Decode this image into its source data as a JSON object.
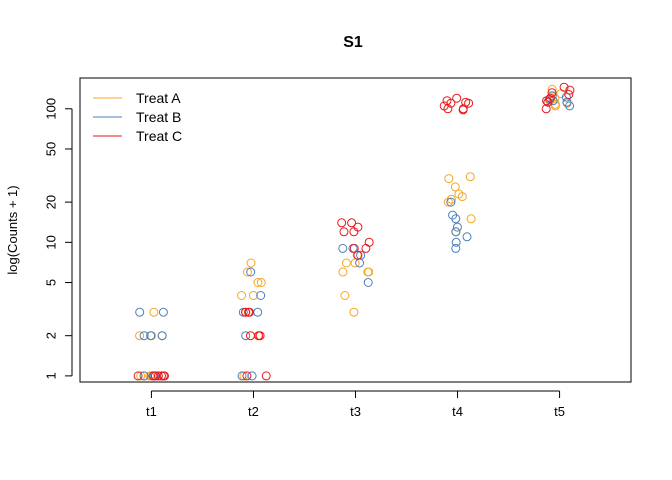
{
  "chart_data": {
    "type": "scatter",
    "title": "S1",
    "xlabel": "",
    "ylabel": "log(Counts + 1)",
    "y_scale": "log",
    "ylim": [
      0.9,
      170
    ],
    "yticks": [
      1,
      2,
      5,
      10,
      20,
      50,
      100
    ],
    "categories": [
      "t1",
      "t2",
      "t3",
      "t4",
      "t5"
    ],
    "grid": false,
    "legend_position": "top-left",
    "series": [
      {
        "name": "Treat A",
        "color": "#F5A623",
        "points": [
          {
            "x": "t1",
            "y": 1
          },
          {
            "x": "t1",
            "y": 1
          },
          {
            "x": "t1",
            "y": 1
          },
          {
            "x": "t1",
            "y": 1
          },
          {
            "x": "t1",
            "y": 1
          },
          {
            "x": "t1",
            "y": 2
          },
          {
            "x": "t1",
            "y": 2
          },
          {
            "x": "t1",
            "y": 2
          },
          {
            "x": "t1",
            "y": 3
          },
          {
            "x": "t2",
            "y": 7
          },
          {
            "x": "t2",
            "y": 6
          },
          {
            "x": "t2",
            "y": 5
          },
          {
            "x": "t2",
            "y": 5
          },
          {
            "x": "t2",
            "y": 4
          },
          {
            "x": "t2",
            "y": 4
          },
          {
            "x": "t2",
            "y": 3
          },
          {
            "x": "t2",
            "y": 2
          },
          {
            "x": "t2",
            "y": 1
          },
          {
            "x": "t3",
            "y": 8
          },
          {
            "x": "t3",
            "y": 7
          },
          {
            "x": "t3",
            "y": 7
          },
          {
            "x": "t3",
            "y": 6
          },
          {
            "x": "t3",
            "y": 6
          },
          {
            "x": "t3",
            "y": 6
          },
          {
            "x": "t3",
            "y": 4
          },
          {
            "x": "t3",
            "y": 3
          },
          {
            "x": "t4",
            "y": 31
          },
          {
            "x": "t4",
            "y": 30
          },
          {
            "x": "t4",
            "y": 26
          },
          {
            "x": "t4",
            "y": 23
          },
          {
            "x": "t4",
            "y": 22
          },
          {
            "x": "t4",
            "y": 21
          },
          {
            "x": "t4",
            "y": 20
          },
          {
            "x": "t4",
            "y": 15
          },
          {
            "x": "t4",
            "y": 12
          },
          {
            "x": "t5",
            "y": 140
          },
          {
            "x": "t5",
            "y": 130
          },
          {
            "x": "t5",
            "y": 120
          },
          {
            "x": "t5",
            "y": 115
          },
          {
            "x": "t5",
            "y": 110
          },
          {
            "x": "t5",
            "y": 108
          },
          {
            "x": "t5",
            "y": 105
          }
        ]
      },
      {
        "name": "Treat B",
        "color": "#4A7FBF",
        "points": [
          {
            "x": "t1",
            "y": 3
          },
          {
            "x": "t1",
            "y": 3
          },
          {
            "x": "t1",
            "y": 2
          },
          {
            "x": "t1",
            "y": 2
          },
          {
            "x": "t1",
            "y": 2
          },
          {
            "x": "t1",
            "y": 1
          },
          {
            "x": "t1",
            "y": 1
          },
          {
            "x": "t2",
            "y": 6
          },
          {
            "x": "t2",
            "y": 4
          },
          {
            "x": "t2",
            "y": 3
          },
          {
            "x": "t2",
            "y": 3
          },
          {
            "x": "t2",
            "y": 2
          },
          {
            "x": "t2",
            "y": 1
          },
          {
            "x": "t2",
            "y": 1
          },
          {
            "x": "t3",
            "y": 9
          },
          {
            "x": "t3",
            "y": 9
          },
          {
            "x": "t3",
            "y": 8
          },
          {
            "x": "t3",
            "y": 7
          },
          {
            "x": "t3",
            "y": 5
          },
          {
            "x": "t4",
            "y": 16
          },
          {
            "x": "t4",
            "y": 15
          },
          {
            "x": "t4",
            "y": 13
          },
          {
            "x": "t4",
            "y": 12
          },
          {
            "x": "t4",
            "y": 11
          },
          {
            "x": "t4",
            "y": 10
          },
          {
            "x": "t4",
            "y": 9
          },
          {
            "x": "t4",
            "y": 20
          },
          {
            "x": "t5",
            "y": 125
          },
          {
            "x": "t5",
            "y": 122
          },
          {
            "x": "t5",
            "y": 118
          },
          {
            "x": "t5",
            "y": 115
          },
          {
            "x": "t5",
            "y": 112
          },
          {
            "x": "t5",
            "y": 105
          }
        ]
      },
      {
        "name": "Treat C",
        "color": "#E8191F",
        "points": [
          {
            "x": "t1",
            "y": 1
          },
          {
            "x": "t1",
            "y": 1
          },
          {
            "x": "t1",
            "y": 1
          },
          {
            "x": "t1",
            "y": 1
          },
          {
            "x": "t1",
            "y": 1
          },
          {
            "x": "t1",
            "y": 1
          },
          {
            "x": "t1",
            "y": 1
          },
          {
            "x": "t2",
            "y": 3
          },
          {
            "x": "t2",
            "y": 3
          },
          {
            "x": "t2",
            "y": 3
          },
          {
            "x": "t2",
            "y": 2
          },
          {
            "x": "t2",
            "y": 2
          },
          {
            "x": "t2",
            "y": 2
          },
          {
            "x": "t2",
            "y": 1
          },
          {
            "x": "t2",
            "y": 1
          },
          {
            "x": "t3",
            "y": 14
          },
          {
            "x": "t3",
            "y": 14
          },
          {
            "x": "t3",
            "y": 13
          },
          {
            "x": "t3",
            "y": 12
          },
          {
            "x": "t3",
            "y": 12
          },
          {
            "x": "t3",
            "y": 10
          },
          {
            "x": "t3",
            "y": 9
          },
          {
            "x": "t3",
            "y": 9
          },
          {
            "x": "t3",
            "y": 8
          },
          {
            "x": "t4",
            "y": 120
          },
          {
            "x": "t4",
            "y": 115
          },
          {
            "x": "t4",
            "y": 112
          },
          {
            "x": "t4",
            "y": 110
          },
          {
            "x": "t4",
            "y": 110
          },
          {
            "x": "t4",
            "y": 105
          },
          {
            "x": "t4",
            "y": 100
          },
          {
            "x": "t4",
            "y": 100
          },
          {
            "x": "t4",
            "y": 98
          },
          {
            "x": "t5",
            "y": 145
          },
          {
            "x": "t5",
            "y": 138
          },
          {
            "x": "t5",
            "y": 132
          },
          {
            "x": "t5",
            "y": 128
          },
          {
            "x": "t5",
            "y": 120
          },
          {
            "x": "t5",
            "y": 115
          },
          {
            "x": "t5",
            "y": 112
          },
          {
            "x": "t5",
            "y": 100
          }
        ]
      }
    ]
  }
}
